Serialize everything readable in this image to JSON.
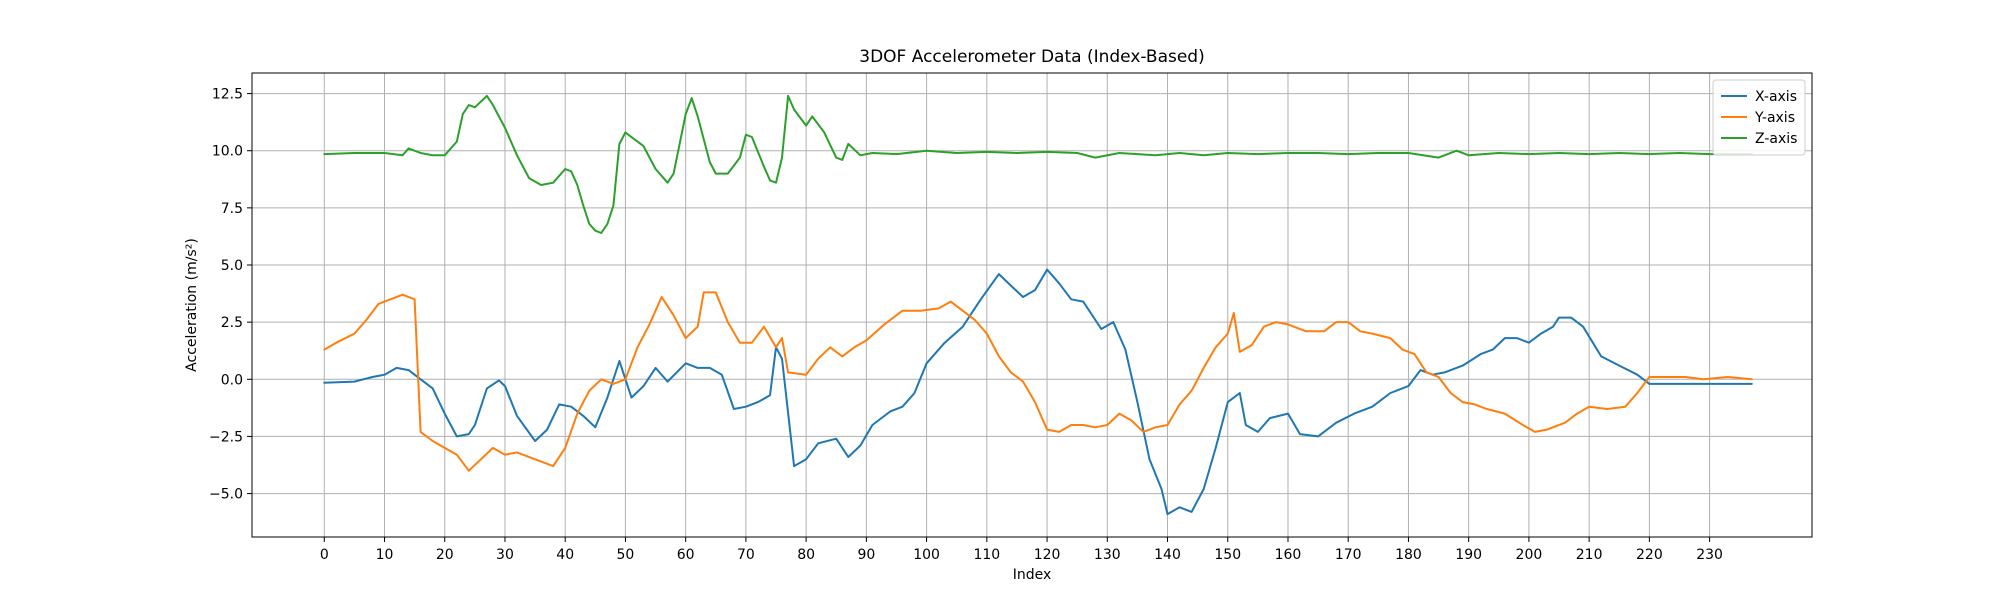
{
  "chart_data": {
    "type": "line",
    "title": "3DOF Accelerometer Data (Index-Based)",
    "xlabel": "Index",
    "ylabel": "Acceleration (m/s²)",
    "xlim": [
      -12,
      247
    ],
    "ylim": [
      -6.9,
      13.4
    ],
    "x_ticks": [
      0,
      10,
      20,
      30,
      40,
      50,
      60,
      70,
      80,
      90,
      100,
      110,
      120,
      130,
      140,
      150,
      160,
      170,
      180,
      190,
      200,
      210,
      220,
      230
    ],
    "x_tick_labels": [
      "0",
      "10",
      "20",
      "30",
      "40",
      "50",
      "60",
      "70",
      "80",
      "90",
      "100",
      "110",
      "120",
      "130",
      "140",
      "150",
      "160",
      "170",
      "180",
      "190",
      "200",
      "210",
      "220",
      "230"
    ],
    "y_ticks": [
      -5,
      -2.5,
      0,
      2.5,
      5,
      7.5,
      10,
      12.5
    ],
    "y_tick_labels": [
      "−5.0",
      "−2.5",
      "0.0",
      "2.5",
      "5.0",
      "7.5",
      "10.0",
      "12.5"
    ],
    "grid": true,
    "legend_position": "top-right",
    "series": [
      {
        "name": "X-axis",
        "color": "#1f77b4",
        "points": [
          [
            0,
            -0.15
          ],
          [
            5,
            -0.1
          ],
          [
            8,
            0.1
          ],
          [
            10,
            0.2
          ],
          [
            12,
            0.5
          ],
          [
            14,
            0.4
          ],
          [
            16,
            0
          ],
          [
            18,
            -0.4
          ],
          [
            20,
            -1.5
          ],
          [
            22,
            -2.5
          ],
          [
            24,
            -2.4
          ],
          [
            25,
            -2.0
          ],
          [
            27,
            -0.4
          ],
          [
            29,
            -0.05
          ],
          [
            30,
            -0.3
          ],
          [
            32,
            -1.6
          ],
          [
            35,
            -2.7
          ],
          [
            37,
            -2.2
          ],
          [
            39,
            -1.1
          ],
          [
            41,
            -1.2
          ],
          [
            43,
            -1.6
          ],
          [
            45,
            -2.1
          ],
          [
            47,
            -0.8
          ],
          [
            49,
            0.8
          ],
          [
            51,
            -0.8
          ],
          [
            53,
            -0.3
          ],
          [
            55,
            0.5
          ],
          [
            57,
            -0.1
          ],
          [
            60,
            0.7
          ],
          [
            62,
            0.5
          ],
          [
            64,
            0.5
          ],
          [
            66,
            0.2
          ],
          [
            68,
            -1.3
          ],
          [
            70,
            -1.2
          ],
          [
            72,
            -1.0
          ],
          [
            74,
            -0.7
          ],
          [
            75,
            1.4
          ],
          [
            76,
            0.9
          ],
          [
            78,
            -3.8
          ],
          [
            80,
            -3.5
          ],
          [
            82,
            -2.8
          ],
          [
            85,
            -2.6
          ],
          [
            87,
            -3.4
          ],
          [
            89,
            -2.9
          ],
          [
            91,
            -2.0
          ],
          [
            94,
            -1.4
          ],
          [
            96,
            -1.2
          ],
          [
            98,
            -0.6
          ],
          [
            100,
            0.7
          ],
          [
            103,
            1.6
          ],
          [
            106,
            2.3
          ],
          [
            109,
            3.5
          ],
          [
            112,
            4.6
          ],
          [
            114,
            4.1
          ],
          [
            116,
            3.6
          ],
          [
            118,
            3.9
          ],
          [
            120,
            4.8
          ],
          [
            122,
            4.2
          ],
          [
            124,
            3.5
          ],
          [
            126,
            3.4
          ],
          [
            129,
            2.2
          ],
          [
            131,
            2.5
          ],
          [
            133,
            1.3
          ],
          [
            135,
            -1.0
          ],
          [
            137,
            -3.5
          ],
          [
            139,
            -4.8
          ],
          [
            140,
            -5.9
          ],
          [
            142,
            -5.6
          ],
          [
            144,
            -5.8
          ],
          [
            146,
            -4.8
          ],
          [
            148,
            -3.0
          ],
          [
            150,
            -1.0
          ],
          [
            152,
            -0.6
          ],
          [
            153,
            -2.0
          ],
          [
            155,
            -2.3
          ],
          [
            157,
            -1.7
          ],
          [
            160,
            -1.5
          ],
          [
            162,
            -2.4
          ],
          [
            165,
            -2.5
          ],
          [
            168,
            -1.9
          ],
          [
            171,
            -1.5
          ],
          [
            174,
            -1.2
          ],
          [
            177,
            -0.6
          ],
          [
            180,
            -0.3
          ],
          [
            182,
            0.4
          ],
          [
            184,
            0.2
          ],
          [
            186,
            0.3
          ],
          [
            189,
            0.6
          ],
          [
            192,
            1.1
          ],
          [
            194,
            1.3
          ],
          [
            196,
            1.8
          ],
          [
            198,
            1.8
          ],
          [
            200,
            1.6
          ],
          [
            202,
            2.0
          ],
          [
            204,
            2.3
          ],
          [
            205,
            2.7
          ],
          [
            207,
            2.7
          ],
          [
            209,
            2.3
          ],
          [
            212,
            1.0
          ],
          [
            215,
            0.6
          ],
          [
            218,
            0.2
          ],
          [
            220,
            -0.2
          ],
          [
            225,
            -0.2
          ],
          [
            230,
            -0.2
          ],
          [
            237,
            -0.2
          ]
        ]
      },
      {
        "name": "Y-axis",
        "color": "#ff7f0e",
        "points": [
          [
            0,
            1.3
          ],
          [
            2,
            1.6
          ],
          [
            5,
            2.0
          ],
          [
            7,
            2.6
          ],
          [
            9,
            3.3
          ],
          [
            11,
            3.5
          ],
          [
            13,
            3.7
          ],
          [
            15,
            3.5
          ],
          [
            16,
            -2.3
          ],
          [
            18,
            -2.7
          ],
          [
            20,
            -3.0
          ],
          [
            22,
            -3.3
          ],
          [
            24,
            -4.0
          ],
          [
            26,
            -3.5
          ],
          [
            28,
            -3.0
          ],
          [
            30,
            -3.3
          ],
          [
            32,
            -3.2
          ],
          [
            35,
            -3.5
          ],
          [
            38,
            -3.8
          ],
          [
            40,
            -3.0
          ],
          [
            42,
            -1.5
          ],
          [
            44,
            -0.5
          ],
          [
            46,
            0.0
          ],
          [
            48,
            -0.2
          ],
          [
            50,
            0.0
          ],
          [
            52,
            1.4
          ],
          [
            54,
            2.4
          ],
          [
            56,
            3.6
          ],
          [
            58,
            2.8
          ],
          [
            60,
            1.8
          ],
          [
            62,
            2.3
          ],
          [
            63,
            3.8
          ],
          [
            65,
            3.8
          ],
          [
            67,
            2.5
          ],
          [
            69,
            1.6
          ],
          [
            71,
            1.6
          ],
          [
            73,
            2.3
          ],
          [
            75,
            1.4
          ],
          [
            76,
            1.8
          ],
          [
            77,
            0.3
          ],
          [
            80,
            0.2
          ],
          [
            82,
            0.9
          ],
          [
            84,
            1.4
          ],
          [
            86,
            1.0
          ],
          [
            88,
            1.4
          ],
          [
            90,
            1.7
          ],
          [
            93,
            2.4
          ],
          [
            96,
            3.0
          ],
          [
            99,
            3.0
          ],
          [
            102,
            3.1
          ],
          [
            104,
            3.4
          ],
          [
            106,
            3.0
          ],
          [
            108,
            2.6
          ],
          [
            110,
            2.0
          ],
          [
            112,
            1.0
          ],
          [
            114,
            0.3
          ],
          [
            116,
            -0.1
          ],
          [
            118,
            -1.0
          ],
          [
            120,
            -2.2
          ],
          [
            122,
            -2.3
          ],
          [
            124,
            -2.0
          ],
          [
            126,
            -2.0
          ],
          [
            128,
            -2.1
          ],
          [
            130,
            -2.0
          ],
          [
            132,
            -1.5
          ],
          [
            134,
            -1.8
          ],
          [
            136,
            -2.3
          ],
          [
            138,
            -2.1
          ],
          [
            140,
            -2.0
          ],
          [
            142,
            -1.1
          ],
          [
            144,
            -0.5
          ],
          [
            146,
            0.5
          ],
          [
            148,
            1.4
          ],
          [
            150,
            2.0
          ],
          [
            151,
            2.9
          ],
          [
            152,
            1.2
          ],
          [
            154,
            1.5
          ],
          [
            156,
            2.3
          ],
          [
            158,
            2.5
          ],
          [
            160,
            2.4
          ],
          [
            163,
            2.1
          ],
          [
            166,
            2.1
          ],
          [
            168,
            2.5
          ],
          [
            170,
            2.5
          ],
          [
            172,
            2.1
          ],
          [
            174,
            2.0
          ],
          [
            177,
            1.8
          ],
          [
            179,
            1.3
          ],
          [
            181,
            1.1
          ],
          [
            183,
            0.3
          ],
          [
            185,
            0.1
          ],
          [
            187,
            -0.6
          ],
          [
            189,
            -1.0
          ],
          [
            191,
            -1.1
          ],
          [
            193,
            -1.3
          ],
          [
            196,
            -1.5
          ],
          [
            199,
            -2.0
          ],
          [
            201,
            -2.3
          ],
          [
            203,
            -2.2
          ],
          [
            206,
            -1.9
          ],
          [
            208,
            -1.5
          ],
          [
            210,
            -1.2
          ],
          [
            213,
            -1.3
          ],
          [
            216,
            -1.2
          ],
          [
            218,
            -0.6
          ],
          [
            220,
            0.1
          ],
          [
            223,
            0.1
          ],
          [
            226,
            0.1
          ],
          [
            229,
            0.0
          ],
          [
            233,
            0.1
          ],
          [
            237,
            0.0
          ]
        ]
      },
      {
        "name": "Z-axis",
        "color": "#2ca02c",
        "points": [
          [
            0,
            9.85
          ],
          [
            5,
            9.9
          ],
          [
            10,
            9.9
          ],
          [
            13,
            9.8
          ],
          [
            14,
            10.1
          ],
          [
            16,
            9.9
          ],
          [
            18,
            9.8
          ],
          [
            20,
            9.8
          ],
          [
            22,
            10.4
          ],
          [
            23,
            11.6
          ],
          [
            24,
            12.0
          ],
          [
            25,
            11.9
          ],
          [
            27,
            12.4
          ],
          [
            28,
            12.0
          ],
          [
            30,
            11.0
          ],
          [
            32,
            9.8
          ],
          [
            34,
            8.8
          ],
          [
            36,
            8.5
          ],
          [
            38,
            8.6
          ],
          [
            40,
            9.2
          ],
          [
            41,
            9.1
          ],
          [
            42,
            8.5
          ],
          [
            43,
            7.6
          ],
          [
            44,
            6.8
          ],
          [
            45,
            6.5
          ],
          [
            46,
            6.4
          ],
          [
            47,
            6.8
          ],
          [
            48,
            7.6
          ],
          [
            49,
            10.3
          ],
          [
            50,
            10.8
          ],
          [
            52,
            10.4
          ],
          [
            53,
            10.2
          ],
          [
            55,
            9.2
          ],
          [
            57,
            8.6
          ],
          [
            58,
            9.0
          ],
          [
            60,
            11.6
          ],
          [
            61,
            12.3
          ],
          [
            62,
            11.5
          ],
          [
            64,
            9.5
          ],
          [
            65,
            9.0
          ],
          [
            67,
            9.0
          ],
          [
            69,
            9.7
          ],
          [
            70,
            10.7
          ],
          [
            71,
            10.6
          ],
          [
            73,
            9.3
          ],
          [
            74,
            8.7
          ],
          [
            75,
            8.6
          ],
          [
            76,
            9.7
          ],
          [
            77,
            12.4
          ],
          [
            78,
            11.8
          ],
          [
            80,
            11.1
          ],
          [
            81,
            11.5
          ],
          [
            83,
            10.8
          ],
          [
            85,
            9.7
          ],
          [
            86,
            9.6
          ],
          [
            87,
            10.3
          ],
          [
            89,
            9.8
          ],
          [
            91,
            9.9
          ],
          [
            95,
            9.85
          ],
          [
            100,
            10.0
          ],
          [
            105,
            9.9
          ],
          [
            110,
            9.95
          ],
          [
            115,
            9.9
          ],
          [
            120,
            9.95
          ],
          [
            125,
            9.9
          ],
          [
            128,
            9.7
          ],
          [
            132,
            9.9
          ],
          [
            135,
            9.85
          ],
          [
            138,
            9.8
          ],
          [
            142,
            9.9
          ],
          [
            146,
            9.8
          ],
          [
            150,
            9.9
          ],
          [
            155,
            9.85
          ],
          [
            160,
            9.9
          ],
          [
            165,
            9.9
          ],
          [
            170,
            9.85
          ],
          [
            175,
            9.9
          ],
          [
            180,
            9.9
          ],
          [
            185,
            9.7
          ],
          [
            188,
            10.0
          ],
          [
            190,
            9.8
          ],
          [
            195,
            9.9
          ],
          [
            200,
            9.85
          ],
          [
            205,
            9.9
          ],
          [
            210,
            9.85
          ],
          [
            215,
            9.9
          ],
          [
            220,
            9.85
          ],
          [
            225,
            9.9
          ],
          [
            230,
            9.85
          ],
          [
            237,
            9.85
          ]
        ]
      }
    ]
  }
}
